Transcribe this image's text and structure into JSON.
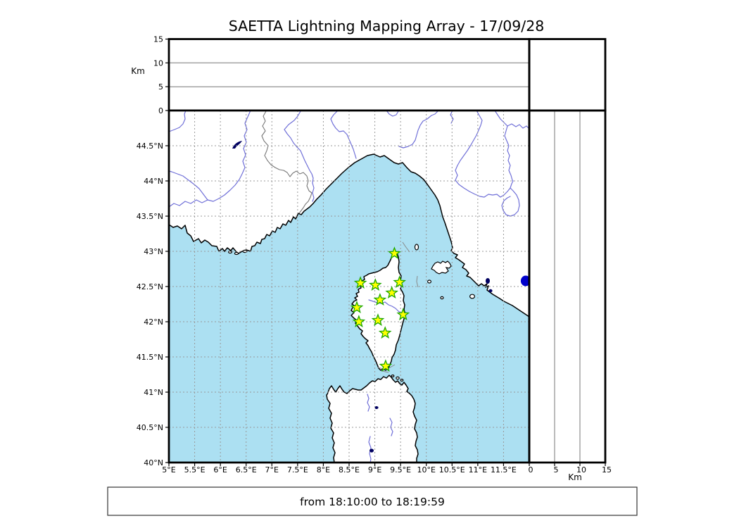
{
  "title": "SAETTA Lightning Mapping Array - 17/09/28",
  "time_range": {
    "text": "from 18:10:00 to 18:19:59",
    "from": "18:10:00",
    "to": "18:19:59"
  },
  "axes": {
    "altitude": {
      "unit_label": "Km",
      "ticks": [
        "0",
        "5",
        "10",
        "15"
      ],
      "range_km": [
        0,
        15
      ]
    },
    "longitude": {
      "ticks": [
        "5°E",
        "5.5°E",
        "6°E",
        "6.5°E",
        "7°E",
        "7.5°E",
        "8°E",
        "8.5°E",
        "9°E",
        "9.5°E",
        "10°E",
        "10.5°E",
        "11°E",
        "11.5°E"
      ]
    },
    "latitude": {
      "ticks": [
        "40°N",
        "40.5°N",
        "41°N",
        "41.5°N",
        "42°N",
        "42.5°N",
        "43°N",
        "43.5°N",
        "44°N",
        "44.5°N"
      ]
    }
  },
  "map_extent": {
    "lon_min": 5,
    "lon_max": 12,
    "lat_min": 40,
    "lat_max": 45
  },
  "stations": [
    {
      "lon": 9.38,
      "lat": 42.97
    },
    {
      "lon": 8.72,
      "lat": 42.55
    },
    {
      "lon": 9.01,
      "lat": 42.52
    },
    {
      "lon": 9.48,
      "lat": 42.56
    },
    {
      "lon": 9.33,
      "lat": 42.41
    },
    {
      "lon": 9.1,
      "lat": 42.31
    },
    {
      "lon": 8.65,
      "lat": 42.2
    },
    {
      "lon": 9.55,
      "lat": 42.1
    },
    {
      "lon": 9.06,
      "lat": 42.02
    },
    {
      "lon": 8.69,
      "lat": 42.0
    },
    {
      "lon": 9.2,
      "lat": 41.84
    },
    {
      "lon": 9.21,
      "lat": 41.37
    }
  ],
  "lightning_sources": [
    {
      "lon": 11.93,
      "lat": 42.58
    }
  ],
  "colors": {
    "sea": "#ace0f2",
    "land": "#ffffff",
    "river": "#7070d8",
    "grid": "#999999",
    "station_fill": "#ffff00",
    "station_stroke": "#1fa800",
    "source_dot": "#0000cc",
    "lake": "#000060",
    "country_border": "#777777"
  },
  "chart_data": {
    "type": "scatter",
    "title": "SAETTA Lightning Mapping Array - 17/09/28",
    "panels": [
      "altitude-vs-longitude",
      "altitude-histogram",
      "map-longitude-latitude",
      "altitude-vs-latitude"
    ],
    "lon_range": [
      5,
      12
    ],
    "lat_range": [
      40,
      45
    ],
    "alt_range_km": [
      0,
      15
    ],
    "grid": true,
    "series": [
      {
        "name": "lma-stations",
        "marker": "star",
        "lon": [
          9.38,
          8.72,
          9.01,
          9.48,
          9.33,
          9.1,
          8.65,
          9.55,
          9.06,
          8.69,
          9.2,
          9.21
        ],
        "lat": [
          42.97,
          42.55,
          42.52,
          42.56,
          42.41,
          42.31,
          42.2,
          42.1,
          42.02,
          42.0,
          41.84,
          41.37
        ]
      },
      {
        "name": "lightning-sources",
        "marker": "dot",
        "lon": [
          11.93
        ],
        "lat": [
          42.58
        ]
      }
    ]
  }
}
